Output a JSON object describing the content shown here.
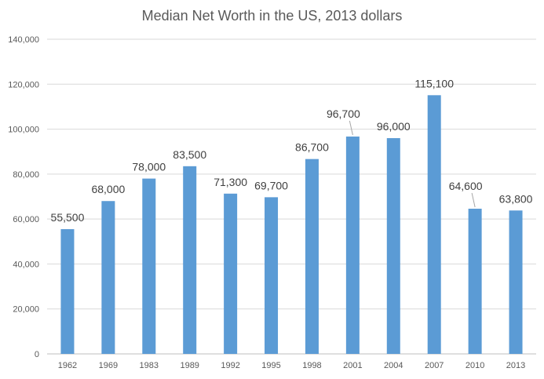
{
  "chart_data": {
    "type": "bar",
    "title": "Median Net Worth in the US, 2013 dollars",
    "xlabel": "",
    "ylabel": "",
    "categories": [
      "1962",
      "1969",
      "1983",
      "1989",
      "1992",
      "1995",
      "1998",
      "2001",
      "2004",
      "2007",
      "2010",
      "2013"
    ],
    "values": [
      55500,
      68000,
      78000,
      83500,
      71300,
      69700,
      86700,
      96700,
      96000,
      115100,
      64600,
      63800
    ],
    "data_labels": [
      "55,500",
      "68,000",
      "78,000",
      "83,500",
      "71,300",
      "69,700",
      "86,700",
      "96,700",
      "96,000",
      "115,100",
      "64,600",
      "63,800"
    ],
    "yticks": [
      "0",
      "20,000",
      "40,000",
      "60,000",
      "80,000",
      "100,000",
      "120,000",
      "140,000"
    ],
    "ylim": [
      0,
      140000
    ],
    "grid": true,
    "bar_color": "#5b9bd5",
    "leader_line_color": "#a6a6a6"
  }
}
